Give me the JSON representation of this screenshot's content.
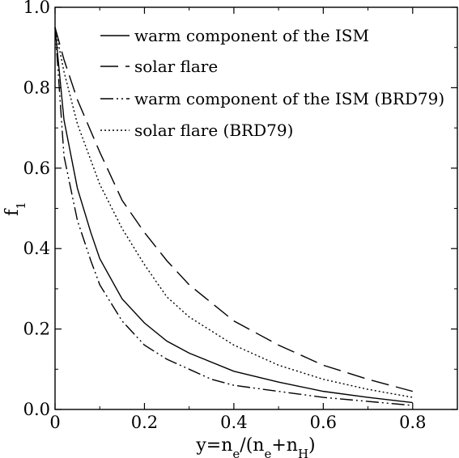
{
  "chart_data": {
    "type": "line",
    "title": "",
    "xlabel": {
      "base": "y=n",
      "sub1": "e",
      "mid": "/(n",
      "sub2": "e",
      "plus": "+n",
      "sub3": "H",
      "close": ")"
    },
    "ylabel": {
      "base": "f",
      "sub": "1"
    },
    "xlim": [
      0,
      0.9
    ],
    "ylim": [
      0,
      1.0
    ],
    "x_ticks": [
      0,
      0.2,
      0.4,
      0.6,
      0.8
    ],
    "x_tick_labels": [
      "0",
      "0.2",
      "0.4",
      "0.6",
      "0.8"
    ],
    "y_ticks": [
      0,
      0.2,
      0.4,
      0.6,
      0.8,
      1.0
    ],
    "y_tick_labels": [
      "0.0",
      "0.2",
      "0.4",
      "0.6",
      "0.8",
      "1.0"
    ],
    "grid": false,
    "legend_position": "top-right",
    "series": [
      {
        "name": "warm component of the ISM",
        "style": "solid",
        "x": [
          0,
          0.02,
          0.05,
          0.08,
          0.1,
          0.15,
          0.2,
          0.25,
          0.3,
          0.4,
          0.5,
          0.6,
          0.7,
          0.8
        ],
        "y": [
          0.95,
          0.72,
          0.55,
          0.44,
          0.375,
          0.275,
          0.215,
          0.17,
          0.14,
          0.095,
          0.068,
          0.045,
          0.03,
          0.017
        ]
      },
      {
        "name": "solar flare",
        "style": "dashed",
        "x": [
          0,
          0.02,
          0.05,
          0.1,
          0.15,
          0.2,
          0.25,
          0.3,
          0.4,
          0.5,
          0.6,
          0.7,
          0.8
        ],
        "y": [
          0.95,
          0.87,
          0.77,
          0.64,
          0.52,
          0.44,
          0.37,
          0.31,
          0.22,
          0.16,
          0.11,
          0.075,
          0.045
        ]
      },
      {
        "name": "warm component of the ISM (BRD79)",
        "style": "dash-dot-dot",
        "x": [
          0,
          0.02,
          0.05,
          0.08,
          0.1,
          0.15,
          0.2,
          0.25,
          0.3,
          0.35,
          0.4,
          0.5,
          0.6,
          0.7,
          0.8
        ],
        "y": [
          0.95,
          0.63,
          0.47,
          0.37,
          0.31,
          0.22,
          0.16,
          0.125,
          0.1,
          0.075,
          0.06,
          0.045,
          0.03,
          0.02,
          0.01
        ]
      },
      {
        "name": "solar flare (BRD79)",
        "style": "dotted",
        "x": [
          0,
          0.02,
          0.05,
          0.1,
          0.15,
          0.2,
          0.25,
          0.3,
          0.4,
          0.5,
          0.6,
          0.7,
          0.8
        ],
        "y": [
          0.95,
          0.84,
          0.71,
          0.56,
          0.45,
          0.36,
          0.28,
          0.23,
          0.16,
          0.11,
          0.075,
          0.05,
          0.03
        ]
      }
    ]
  }
}
